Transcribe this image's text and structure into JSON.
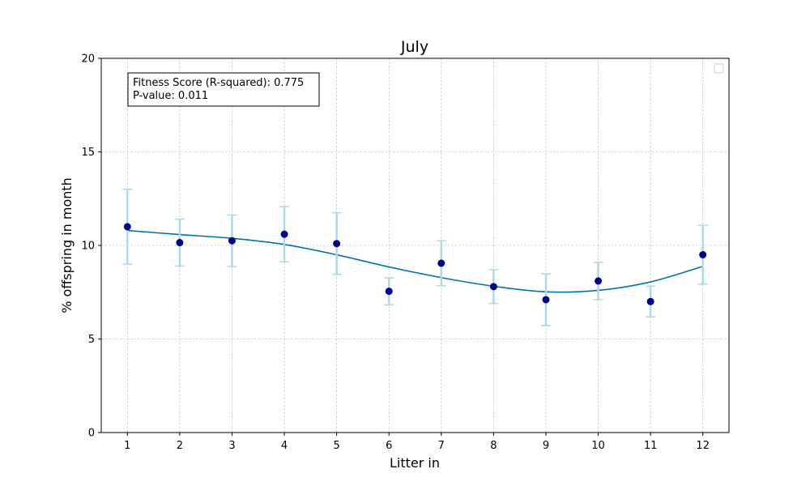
{
  "chart_data": {
    "type": "scatter",
    "title": "July",
    "xlabel": "Litter in",
    "ylabel": "% offspring in month",
    "xlim": [
      0.5,
      12.5
    ],
    "ylim": [
      0,
      20
    ],
    "x_ticks": [
      1,
      2,
      3,
      4,
      5,
      6,
      7,
      8,
      9,
      10,
      11,
      12
    ],
    "y_ticks": [
      0,
      5,
      10,
      15,
      20
    ],
    "grid": true,
    "legend": "upper right (empty)",
    "colors": {
      "points": "#00008b",
      "error_bars": "#add8e6",
      "fit_line": "#0072b2",
      "grid": "#b0b0b0"
    },
    "series": [
      {
        "x": [
          1,
          2,
          3,
          4,
          5,
          6,
          7,
          8,
          9,
          10,
          11,
          12
        ],
        "y": [
          11.0,
          10.15,
          10.25,
          10.6,
          10.1,
          7.55,
          9.05,
          7.8,
          7.1,
          8.1,
          7.0,
          9.5
        ],
        "error": [
          2.0,
          1.25,
          1.38,
          1.48,
          1.65,
          0.72,
          1.2,
          0.9,
          1.38,
          1.0,
          0.82,
          1.57
        ]
      }
    ],
    "fit_curve": {
      "x": [
        1,
        2,
        3,
        4,
        5,
        6,
        7,
        8,
        9,
        10,
        11,
        12
      ],
      "y": [
        10.8,
        10.58,
        10.38,
        10.05,
        9.5,
        8.85,
        8.28,
        7.82,
        7.52,
        7.6,
        8.05,
        8.88
      ]
    },
    "annotation": {
      "line1": "Fitness Score (R-squared): 0.775",
      "line2": "P-value: 0.011"
    }
  }
}
